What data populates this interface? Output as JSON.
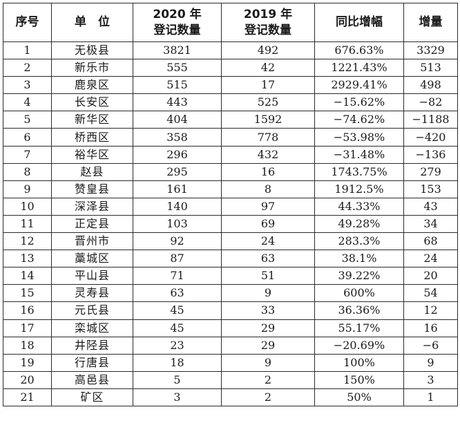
{
  "table": {
    "headers": {
      "index": "序号",
      "unit": "单　位",
      "y2020_line1": "2020 年",
      "y2020_line2": "登记数量",
      "y2019_line1": "2019 年",
      "y2019_line2": "登记数量",
      "yoy": "同比增幅",
      "delta": "增量"
    },
    "rows": [
      {
        "index": "1",
        "unit": "无极县",
        "y2020": "3821",
        "y2019": "492",
        "yoy": "676.63%",
        "delta": "3329"
      },
      {
        "index": "2",
        "unit": "新乐市",
        "y2020": "555",
        "y2019": "42",
        "yoy": "1221.43%",
        "delta": "513"
      },
      {
        "index": "3",
        "unit": "鹿泉区",
        "y2020": "515",
        "y2019": "17",
        "yoy": "2929.41%",
        "delta": "498"
      },
      {
        "index": "4",
        "unit": "长安区",
        "y2020": "443",
        "y2019": "525",
        "yoy": "−15.62%",
        "delta": "−82"
      },
      {
        "index": "5",
        "unit": "新华区",
        "y2020": "404",
        "y2019": "1592",
        "yoy": "−74.62%",
        "delta": "−1188"
      },
      {
        "index": "6",
        "unit": "桥西区",
        "y2020": "358",
        "y2019": "778",
        "yoy": "−53.98%",
        "delta": "−420"
      },
      {
        "index": "7",
        "unit": "裕华区",
        "y2020": "296",
        "y2019": "432",
        "yoy": "−31.48%",
        "delta": "−136"
      },
      {
        "index": "8",
        "unit": "赵县",
        "y2020": "295",
        "y2019": "16",
        "yoy": "1743.75%",
        "delta": "279"
      },
      {
        "index": "9",
        "unit": "赞皇县",
        "y2020": "161",
        "y2019": "8",
        "yoy": "1912.5%",
        "delta": "153"
      },
      {
        "index": "10",
        "unit": "深泽县",
        "y2020": "140",
        "y2019": "97",
        "yoy": "44.33%",
        "delta": "43"
      },
      {
        "index": "11",
        "unit": "正定县",
        "y2020": "103",
        "y2019": "69",
        "yoy": "49.28%",
        "delta": "34"
      },
      {
        "index": "12",
        "unit": "晋州市",
        "y2020": "92",
        "y2019": "24",
        "yoy": "283.3%",
        "delta": "68"
      },
      {
        "index": "13",
        "unit": "藁城区",
        "y2020": "87",
        "y2019": "63",
        "yoy": "38.1%",
        "delta": "24"
      },
      {
        "index": "14",
        "unit": "平山县",
        "y2020": "71",
        "y2019": "51",
        "yoy": "39.22%",
        "delta": "20"
      },
      {
        "index": "15",
        "unit": "灵寿县",
        "y2020": "63",
        "y2019": "9",
        "yoy": "600%",
        "delta": "54"
      },
      {
        "index": "16",
        "unit": "元氏县",
        "y2020": "45",
        "y2019": "33",
        "yoy": "36.36%",
        "delta": "12"
      },
      {
        "index": "17",
        "unit": "栾城区",
        "y2020": "45",
        "y2019": "29",
        "yoy": "55.17%",
        "delta": "16"
      },
      {
        "index": "18",
        "unit": "井陉县",
        "y2020": "23",
        "y2019": "29",
        "yoy": "−20.69%",
        "delta": "−6"
      },
      {
        "index": "19",
        "unit": "行唐县",
        "y2020": "18",
        "y2019": "9",
        "yoy": "100%",
        "delta": "9"
      },
      {
        "index": "20",
        "unit": "高邑县",
        "y2020": "5",
        "y2019": "2",
        "yoy": "150%",
        "delta": "3"
      },
      {
        "index": "21",
        "unit": "矿区",
        "y2020": "3",
        "y2019": "2",
        "yoy": "50%",
        "delta": "1"
      }
    ]
  }
}
